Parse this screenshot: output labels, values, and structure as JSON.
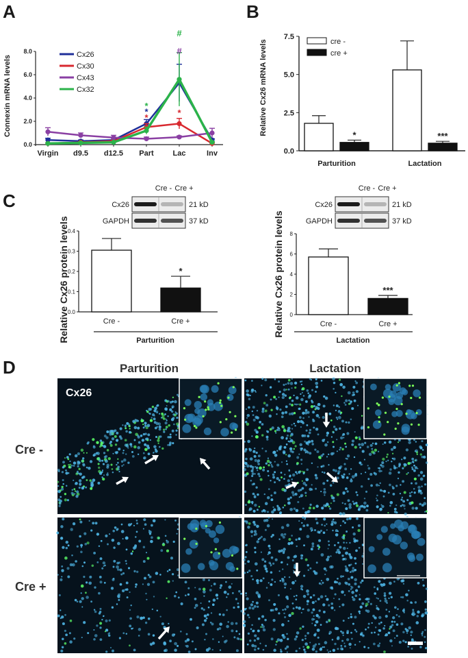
{
  "panels": {
    "a": "A",
    "b": "B",
    "c": "C",
    "d": "D"
  },
  "colors": {
    "Cx26": "#1f2f9a",
    "Cx30": "#d8282f",
    "Cx43": "#8a3fa3",
    "Cx32": "#2bb34a"
  },
  "chart_data": [
    {
      "id": "A",
      "type": "line",
      "ylabel": "Connexin mRNA levels",
      "xlabel": "",
      "categories": [
        "Virgin",
        "d9.5",
        "d12.5",
        "Part",
        "Lac",
        "Inv"
      ],
      "ylim": [
        0,
        8
      ],
      "yticks": [
        "0.0",
        "2.0",
        "4.0",
        "6.0",
        "8.0"
      ],
      "legend_position": "top-left",
      "series": [
        {
          "name": "Cx26",
          "values": [
            0.4,
            0.3,
            0.4,
            1.8,
            5.3,
            0.4
          ],
          "errors": [
            0.15,
            0.1,
            0.15,
            0.35,
            1.6,
            0.1
          ]
        },
        {
          "name": "Cx30",
          "values": [
            0.1,
            0.2,
            0.3,
            1.5,
            1.8,
            0.1
          ],
          "errors": [
            0.05,
            0.05,
            0.1,
            0.3,
            0.45,
            0.05
          ]
        },
        {
          "name": "Cx43",
          "values": [
            1.1,
            0.8,
            0.6,
            0.5,
            0.65,
            1.0
          ],
          "errors": [
            0.35,
            0.2,
            0.2,
            0.15,
            0.1,
            0.4
          ]
        },
        {
          "name": "Cx32",
          "values": [
            0.1,
            0.15,
            0.2,
            1.2,
            5.6,
            0.2
          ],
          "errors": [
            0.05,
            0.05,
            0.05,
            0.3,
            2.3,
            0.05
          ]
        }
      ],
      "annotations": [
        {
          "category": "Part",
          "text": "*",
          "series": "Cx32",
          "y": 3.3
        },
        {
          "category": "Part",
          "text": "*",
          "series": "Cx26",
          "y": 2.8
        },
        {
          "category": "Part",
          "text": "*",
          "series": "Cx30",
          "y": 2.3
        },
        {
          "category": "Lac",
          "text": "#",
          "series": "Cx32",
          "y": 9.0
        },
        {
          "category": "Lac",
          "text": "#",
          "series": "Cx43",
          "y": 8.0
        },
        {
          "category": "Lac",
          "text": "*",
          "series": "Cx30",
          "y": 2.7
        }
      ]
    },
    {
      "id": "B",
      "type": "bar",
      "ylabel": "Relative Cx26 mRNA levels",
      "categories": [
        "Parturition",
        "Lactation"
      ],
      "ylim": [
        0,
        7.5
      ],
      "yticks": [
        "0.0",
        "2.5",
        "5.0",
        "7.5"
      ],
      "legend_position": "top-left",
      "series": [
        {
          "name": "cre -",
          "values": [
            1.8,
            5.3
          ],
          "errors": [
            0.5,
            1.9
          ]
        },
        {
          "name": "cre +",
          "values": [
            0.55,
            0.5
          ],
          "errors": [
            0.15,
            0.12
          ]
        }
      ],
      "significance": [
        {
          "category": "Parturition",
          "text": "*"
        },
        {
          "category": "Lactation",
          "text": "***"
        }
      ]
    },
    {
      "id": "C1",
      "type": "bar",
      "ylabel": "Relative Cx26 protein levels",
      "xlabel": "Parturition",
      "categories": [
        "Cre -",
        "Cre +"
      ],
      "values": [
        0.305,
        0.118
      ],
      "errors": [
        0.058,
        0.058
      ],
      "ylim": [
        0,
        0.4
      ],
      "yticks": [
        "0.0",
        "0.1",
        "0.2",
        "0.3",
        "0.4"
      ],
      "significance": [
        {
          "category": "Cre +",
          "text": "*"
        }
      ],
      "blot": {
        "columns": [
          "Cre -",
          "Cre +"
        ],
        "rows": [
          {
            "label": "Cx26",
            "size": "21 kD"
          },
          {
            "label": "GAPDH",
            "size": "37 kD"
          }
        ]
      }
    },
    {
      "id": "C2",
      "type": "bar",
      "ylabel": "Relative Cx26 protein levels",
      "xlabel": "Lactation",
      "categories": [
        "Cre -",
        "Cre +"
      ],
      "values": [
        5.7,
        1.6
      ],
      "errors": [
        0.8,
        0.3
      ],
      "ylim": [
        0,
        8
      ],
      "yticks": [
        "0",
        "2",
        "4",
        "6",
        "8"
      ],
      "significance": [
        {
          "category": "Cre +",
          "text": "***"
        }
      ],
      "blot": {
        "columns": [
          "Cre -",
          "Cre +"
        ],
        "rows": [
          {
            "label": "Cx26",
            "size": "21 kD"
          },
          {
            "label": "GAPDH",
            "size": "37 kD"
          }
        ]
      }
    }
  ],
  "micrographs": {
    "columns": [
      "Parturition",
      "Lactation"
    ],
    "rows": [
      "Cre -",
      "Cre +"
    ],
    "stain_label": "Cx26"
  }
}
